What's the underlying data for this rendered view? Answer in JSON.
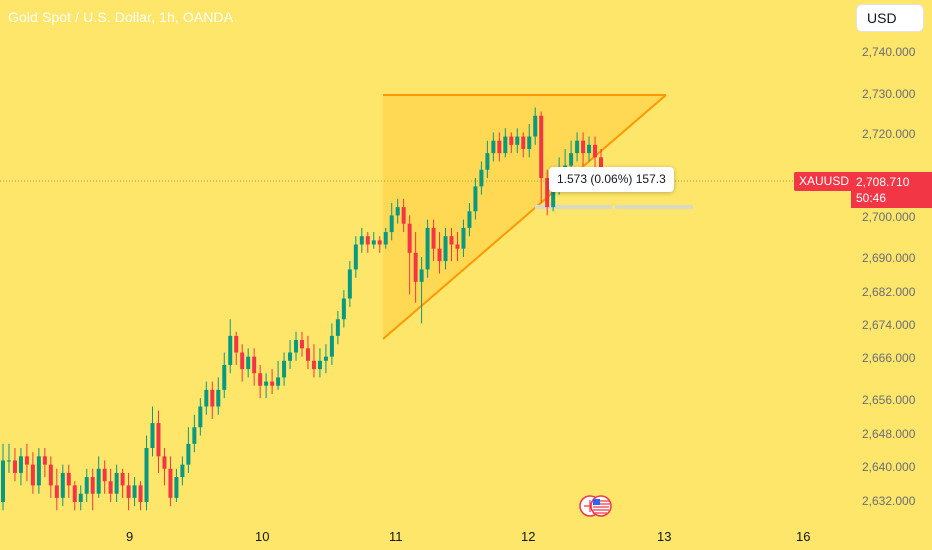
{
  "header": {
    "title": "Gold Spot / U.S. Dollar, 1h, OANDA"
  },
  "currency_button": {
    "label": "USD"
  },
  "price_scale": {
    "ticks": [
      "2,740.000",
      "2,730.000",
      "2,720.000",
      "2,700.000",
      "2,690.000",
      "2,682.000",
      "2,674.000",
      "2,666.000",
      "2,656.000",
      "2,648.000",
      "2,640.000",
      "2,632.000"
    ]
  },
  "time_axis": {
    "ticks": [
      "9",
      "10",
      "11",
      "12",
      "13",
      "16"
    ]
  },
  "symbol_tag": {
    "label": "XAUUSD"
  },
  "last_price": {
    "price": "2,708.710",
    "countdown": "50:46"
  },
  "measure_tooltip": {
    "text": "1.573 (0.06%) 157.3"
  },
  "colors": {
    "up": "#089981",
    "down": "#f23645",
    "pattern": "#ff9800",
    "background": "#fde66a"
  },
  "icons": {
    "events": "us-flag-economic-events-icon"
  },
  "chart_data": {
    "type": "candlestick",
    "title": "Gold Spot / U.S. Dollar, 1h, OANDA",
    "x": [
      "9",
      "10",
      "11",
      "12",
      "13",
      "16"
    ],
    "ylim": [
      2629,
      2743
    ],
    "last_price": 2708.71,
    "candles": [
      [
        2632,
        2642,
        2630,
        2646
      ],
      [
        2642,
        2642,
        2639,
        2646
      ],
      [
        2642,
        2639,
        2637,
        2645
      ],
      [
        2639,
        2643,
        2636,
        2645
      ],
      [
        2643,
        2641,
        2637,
        2646
      ],
      [
        2641,
        2636,
        2634,
        2644
      ],
      [
        2636,
        2643,
        2634,
        2645
      ],
      [
        2643,
        2641,
        2638,
        2645
      ],
      [
        2641,
        2636,
        2633,
        2643
      ],
      [
        2636,
        2633,
        2630,
        2640
      ],
      [
        2633,
        2639,
        2631,
        2641
      ],
      [
        2639,
        2636,
        2633,
        2641
      ],
      [
        2636,
        2632,
        2630,
        2637
      ],
      [
        2632,
        2634,
        2630,
        2636
      ],
      [
        2634,
        2638,
        2632,
        2640
      ],
      [
        2638,
        2634,
        2630,
        2640
      ],
      [
        2634,
        2640,
        2633,
        2643
      ],
      [
        2640,
        2637,
        2634,
        2642
      ],
      [
        2637,
        2634,
        2632,
        2640
      ],
      [
        2634,
        2639,
        2632,
        2641
      ],
      [
        2639,
        2636,
        2633,
        2640
      ],
      [
        2636,
        2633,
        2630,
        2639
      ],
      [
        2633,
        2636,
        2631,
        2638
      ],
      [
        2636,
        2632,
        2630,
        2637
      ],
      [
        2632,
        2645,
        2630,
        2648
      ],
      [
        2645,
        2651,
        2643,
        2655
      ],
      [
        2651,
        2643,
        2639,
        2654
      ],
      [
        2643,
        2640,
        2636,
        2645
      ],
      [
        2640,
        2633,
        2631,
        2643
      ],
      [
        2633,
        2638,
        2632,
        2640
      ],
      [
        2638,
        2641,
        2636,
        2643
      ],
      [
        2641,
        2646,
        2639,
        2650
      ],
      [
        2646,
        2650,
        2644,
        2653
      ],
      [
        2650,
        2655,
        2648,
        2657
      ],
      [
        2655,
        2659,
        2653,
        2661
      ],
      [
        2659,
        2655,
        2652,
        2661
      ],
      [
        2655,
        2659,
        2653,
        2662
      ],
      [
        2659,
        2665,
        2657,
        2668
      ],
      [
        2665,
        2672,
        2663,
        2676
      ],
      [
        2672,
        2668,
        2665,
        2673
      ],
      [
        2668,
        2664,
        2661,
        2670
      ],
      [
        2664,
        2667,
        2662,
        2669
      ],
      [
        2667,
        2663,
        2660,
        2669
      ],
      [
        2663,
        2660,
        2657,
        2665
      ],
      [
        2660,
        2661,
        2657,
        2663
      ],
      [
        2661,
        2660,
        2658,
        2664
      ],
      [
        2660,
        2662,
        2659,
        2666
      ],
      [
        2662,
        2666,
        2660,
        2668
      ],
      [
        2666,
        2668,
        2664,
        2671
      ],
      [
        2668,
        2671,
        2666,
        2673
      ],
      [
        2671,
        2669,
        2667,
        2673
      ],
      [
        2669,
        2666,
        2664,
        2672
      ],
      [
        2666,
        2664,
        2662,
        2670
      ],
      [
        2664,
        2666,
        2662,
        2669
      ],
      [
        2666,
        2667,
        2663,
        2670
      ],
      [
        2667,
        2672,
        2665,
        2675
      ],
      [
        2672,
        2676,
        2670,
        2678
      ],
      [
        2676,
        2681,
        2674,
        2683
      ],
      [
        2681,
        2688,
        2679,
        2690
      ],
      [
        2688,
        2694,
        2686,
        2696
      ],
      [
        2694,
        2696,
        2692,
        2698
      ],
      [
        2696,
        2694,
        2692,
        2697
      ],
      [
        2694,
        2695,
        2693,
        2697
      ],
      [
        2695,
        2694,
        2692,
        2696
      ],
      [
        2694,
        2697,
        2693,
        2698
      ],
      [
        2697,
        2701,
        2695,
        2704
      ],
      [
        2701,
        2703,
        2699,
        2705
      ],
      [
        2703,
        2699,
        2697,
        2705
      ],
      [
        2699,
        2692,
        2682,
        2701
      ],
      [
        2692,
        2685,
        2680,
        2697
      ],
      [
        2685,
        2688,
        2675,
        2691
      ],
      [
        2688,
        2698,
        2686,
        2700
      ],
      [
        2698,
        2693,
        2690,
        2700
      ],
      [
        2693,
        2690,
        2687,
        2697
      ],
      [
        2690,
        2696,
        2688,
        2698
      ],
      [
        2696,
        2694,
        2690,
        2698
      ],
      [
        2694,
        2693,
        2690,
        2697
      ],
      [
        2693,
        2698,
        2691,
        2700
      ],
      [
        2698,
        2702,
        2696,
        2704
      ],
      [
        2702,
        2708,
        2700,
        2710
      ],
      [
        2708,
        2712,
        2706,
        2714
      ],
      [
        2712,
        2716,
        2710,
        2719
      ],
      [
        2716,
        2719,
        2714,
        2721
      ],
      [
        2719,
        2716,
        2714,
        2721
      ],
      [
        2716,
        2720,
        2715,
        2722
      ],
      [
        2720,
        2718,
        2716,
        2721
      ],
      [
        2718,
        2720,
        2716,
        2722
      ],
      [
        2720,
        2717,
        2715,
        2721
      ],
      [
        2717,
        2720,
        2715,
        2723
      ],
      [
        2720,
        2725,
        2718,
        2727
      ],
      [
        2725,
        2710,
        2704,
        2726
      ],
      [
        2710,
        2703,
        2701,
        2712
      ],
      [
        2703,
        2708,
        2702,
        2711
      ],
      [
        2708,
        2712,
        2706,
        2715
      ],
      [
        2712,
        2713,
        2708,
        2717
      ],
      [
        2713,
        2716,
        2711,
        2719
      ],
      [
        2716,
        2719,
        2714,
        2721
      ],
      [
        2719,
        2716,
        2713,
        2721
      ],
      [
        2716,
        2718,
        2714,
        2720
      ],
      [
        2718,
        2715,
        2712,
        2720
      ],
      [
        2715,
        2709,
        2707,
        2717
      ]
    ],
    "pattern": {
      "type": "ascending-triangle-drawing",
      "upper_line": 2730,
      "start_lower": 2673,
      "end": 2730
    }
  }
}
